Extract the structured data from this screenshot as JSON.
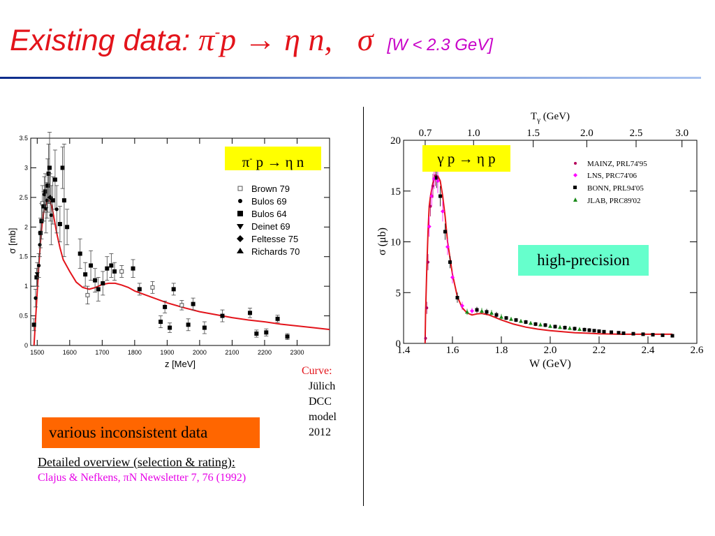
{
  "slide": {
    "title": {
      "prefix": "Existing data: ",
      "pi": "π",
      "pi_charge": "-",
      "rest": "p → η n,",
      "sigma": "σ",
      "range": "[W < 2.3 GeV]"
    },
    "curve_note": {
      "label": "Curve:",
      "line1": "Jülich",
      "line2": "DCC",
      "line3": "model",
      "line4": "2012"
    },
    "badge_left": "various inconsistent data",
    "badge_right": "high-precision",
    "overview_label": "Detailed overview (selection & rating):",
    "citation": "Clajus & Nefkens, πN Newsletter 7, 76 (1992)",
    "colors": {
      "title": "#e3141b",
      "curve": "#e3141b",
      "badge_left": "#ff6600",
      "badge_right": "#66ffcc",
      "reaction_box": "#ffff00",
      "citation": "#e600e6"
    }
  },
  "chart_data": [
    {
      "type": "scatter",
      "reaction": {
        "pi": "π",
        "charge": "-",
        "rest": " p → η n"
      },
      "xlabel": "z [MeV]",
      "ylabel": "σ [mb]",
      "xlim": [
        1480,
        2400
      ],
      "ylim": [
        0,
        3.5
      ],
      "xticks": [
        "1500",
        "1600",
        "1700",
        "1800",
        "1900",
        "2000",
        "2100",
        "2200",
        "2300"
      ],
      "yticks": [
        "0",
        "0.5",
        "1",
        "1.5",
        "2",
        "2.5",
        "3",
        "3.5"
      ],
      "legend_position": "right",
      "legend": [
        {
          "name": "Brown 79",
          "marker": "open-square"
        },
        {
          "name": "Bulos 69",
          "marker": "circle"
        },
        {
          "name": "Bulos 64",
          "marker": "square"
        },
        {
          "name": "Deinet 69",
          "marker": "triangle-down"
        },
        {
          "name": "Feltesse 75",
          "marker": "diamond"
        },
        {
          "name": "Richards 70",
          "marker": "triangle-up"
        }
      ],
      "points": [
        {
          "x": 1490,
          "y": 0.35,
          "e": 0.1,
          "m": "square"
        },
        {
          "x": 1495,
          "y": 0.8,
          "e": 0.15,
          "m": "circle"
        },
        {
          "x": 1498,
          "y": 1.15,
          "e": 0.15,
          "m": "square"
        },
        {
          "x": 1500,
          "y": 1.2,
          "e": 0.2,
          "m": "triangle-down"
        },
        {
          "x": 1505,
          "y": 1.35,
          "e": 0.2,
          "m": "circle"
        },
        {
          "x": 1508,
          "y": 1.7,
          "e": 0.2,
          "m": "circle"
        },
        {
          "x": 1510,
          "y": 1.9,
          "e": 0.25,
          "m": "square"
        },
        {
          "x": 1513,
          "y": 2.1,
          "e": 0.3,
          "m": "square"
        },
        {
          "x": 1516,
          "y": 2.4,
          "e": 0.3,
          "m": "open-square"
        },
        {
          "x": 1520,
          "y": 2.35,
          "e": 0.25,
          "m": "square"
        },
        {
          "x": 1522,
          "y": 2.55,
          "e": 0.3,
          "m": "circle"
        },
        {
          "x": 1525,
          "y": 2.6,
          "e": 0.3,
          "m": "square"
        },
        {
          "x": 1527,
          "y": 2.3,
          "e": 0.4,
          "m": "triangle-down"
        },
        {
          "x": 1530,
          "y": 2.45,
          "e": 0.3,
          "m": "circle"
        },
        {
          "x": 1532,
          "y": 2.7,
          "e": 0.45,
          "m": "square"
        },
        {
          "x": 1535,
          "y": 2.9,
          "e": 0.5,
          "m": "square"
        },
        {
          "x": 1538,
          "y": 3.0,
          "e": 0.6,
          "m": "square"
        },
        {
          "x": 1540,
          "y": 2.5,
          "e": 0.4,
          "m": "diamond"
        },
        {
          "x": 1543,
          "y": 2.2,
          "e": 0.5,
          "m": "circle"
        },
        {
          "x": 1548,
          "y": 2.45,
          "e": 0.4,
          "m": "square"
        },
        {
          "x": 1555,
          "y": 2.8,
          "e": 0.5,
          "m": "square"
        },
        {
          "x": 1560,
          "y": 2.3,
          "e": 0.4,
          "m": "circle"
        },
        {
          "x": 1570,
          "y": 2.05,
          "e": 0.3,
          "m": "square"
        },
        {
          "x": 1578,
          "y": 3.0,
          "e": 0.35,
          "m": "square"
        },
        {
          "x": 1583,
          "y": 2.45,
          "e": 0.95,
          "m": "square"
        },
        {
          "x": 1592,
          "y": 2.0,
          "e": 0.3,
          "m": "square"
        },
        {
          "x": 1632,
          "y": 1.55,
          "e": 0.25,
          "m": "square"
        },
        {
          "x": 1648,
          "y": 1.2,
          "e": 0.2,
          "m": "square"
        },
        {
          "x": 1655,
          "y": 0.85,
          "e": 0.15,
          "m": "open-square"
        },
        {
          "x": 1665,
          "y": 1.35,
          "e": 0.25,
          "m": "square"
        },
        {
          "x": 1678,
          "y": 1.1,
          "e": 0.2,
          "m": "square"
        },
        {
          "x": 1688,
          "y": 0.95,
          "e": 0.2,
          "m": "square"
        },
        {
          "x": 1702,
          "y": 1.05,
          "e": 0.2,
          "m": "square"
        },
        {
          "x": 1715,
          "y": 1.3,
          "e": 0.2,
          "m": "square"
        },
        {
          "x": 1728,
          "y": 1.35,
          "e": 0.2,
          "m": "square"
        },
        {
          "x": 1738,
          "y": 1.25,
          "e": 0.15,
          "m": "square"
        },
        {
          "x": 1760,
          "y": 1.25,
          "e": 0.1,
          "m": "open-square"
        },
        {
          "x": 1795,
          "y": 1.3,
          "e": 0.15,
          "m": "square"
        },
        {
          "x": 1815,
          "y": 0.95,
          "e": 0.1,
          "m": "square"
        },
        {
          "x": 1855,
          "y": 0.98,
          "e": 0.1,
          "m": "open-square"
        },
        {
          "x": 1880,
          "y": 0.4,
          "e": 0.1,
          "m": "square"
        },
        {
          "x": 1893,
          "y": 0.65,
          "e": 0.1,
          "m": "square"
        },
        {
          "x": 1908,
          "y": 0.3,
          "e": 0.08,
          "m": "square"
        },
        {
          "x": 1920,
          "y": 0.95,
          "e": 0.1,
          "m": "square"
        },
        {
          "x": 1945,
          "y": 0.68,
          "e": 0.08,
          "m": "open-square"
        },
        {
          "x": 1965,
          "y": 0.35,
          "e": 0.1,
          "m": "square"
        },
        {
          "x": 1980,
          "y": 0.7,
          "e": 0.1,
          "m": "square"
        },
        {
          "x": 2015,
          "y": 0.3,
          "e": 0.1,
          "m": "square"
        },
        {
          "x": 2070,
          "y": 0.5,
          "e": 0.1,
          "m": "square"
        },
        {
          "x": 2155,
          "y": 0.55,
          "e": 0.08,
          "m": "square"
        },
        {
          "x": 2175,
          "y": 0.2,
          "e": 0.06,
          "m": "square"
        },
        {
          "x": 2205,
          "y": 0.22,
          "e": 0.06,
          "m": "square"
        },
        {
          "x": 2240,
          "y": 0.45,
          "e": 0.06,
          "m": "square"
        },
        {
          "x": 2270,
          "y": 0.15,
          "e": 0.05,
          "m": "square"
        }
      ],
      "curve": {
        "x": [
          1490,
          1495,
          1500,
          1505,
          1510,
          1515,
          1520,
          1525,
          1530,
          1535,
          1540,
          1545,
          1550,
          1560,
          1570,
          1580,
          1600,
          1620,
          1640,
          1660,
          1680,
          1700,
          1720,
          1740,
          1760,
          1780,
          1800,
          1850,
          1900,
          1950,
          2000,
          2050,
          2100,
          2150,
          2200,
          2250,
          2300,
          2350,
          2400
        ],
        "y": [
          0.0,
          0.45,
          0.9,
          1.35,
          1.75,
          2.05,
          2.25,
          2.35,
          2.42,
          2.45,
          2.43,
          2.35,
          2.2,
          1.9,
          1.65,
          1.45,
          1.25,
          1.07,
          0.98,
          0.95,
          0.98,
          1.03,
          1.05,
          1.05,
          1.02,
          0.98,
          0.92,
          0.82,
          0.72,
          0.64,
          0.57,
          0.52,
          0.47,
          0.43,
          0.4,
          0.36,
          0.33,
          0.3,
          0.27
        ]
      }
    },
    {
      "type": "scatter",
      "reaction": "γ p → η p",
      "xlabel": "W (GeV)",
      "ylabel": "σ (μb)",
      "x2label_base": "T",
      "x2label_sub": "γ",
      "x2label_rest": " (GeV)",
      "xlim": [
        1.4,
        2.6
      ],
      "ylim": [
        0,
        20
      ],
      "xticks": [
        "1.4",
        "1.6",
        "1.8",
        "2.0",
        "2.2",
        "2.4",
        "2.6"
      ],
      "yticks": [
        "0",
        "5",
        "10",
        "15",
        "20"
      ],
      "x2ticks": [
        {
          "label": "0.7",
          "w": 1.4884
        },
        {
          "label": "1.0",
          "w": 1.6864
        },
        {
          "label": "1.5",
          "w": 1.9305
        },
        {
          "label": "2.0",
          "w": 2.1496
        },
        {
          "label": "2.5",
          "w": 2.3514
        },
        {
          "label": "3.0",
          "w": 2.5392
        }
      ],
      "legend_position": "top-right",
      "legend": [
        {
          "name": "MAINZ, PRL74'95",
          "color": "#b5005a",
          "marker": "dot"
        },
        {
          "name": "LNS, PRC74'06",
          "color": "#ff00ff",
          "marker": "diamond"
        },
        {
          "name": "BONN, PRL94'05",
          "color": "#000000",
          "marker": "square"
        },
        {
          "name": "JLAB, PRC89'02",
          "color": "#1a8a1a",
          "marker": "triangle"
        }
      ],
      "points": [
        {
          "x": 1.49,
          "y": 0.5,
          "e": 0.3,
          "s": 0
        },
        {
          "x": 1.495,
          "y": 3.5,
          "e": 0.6,
          "s": 0
        },
        {
          "x": 1.5,
          "y": 8.0,
          "e": 0.8,
          "s": 0
        },
        {
          "x": 1.505,
          "y": 11.5,
          "e": 1.0,
          "s": 1
        },
        {
          "x": 1.51,
          "y": 13.5,
          "e": 1.0,
          "s": 0
        },
        {
          "x": 1.515,
          "y": 14.5,
          "e": 1.0,
          "s": 1
        },
        {
          "x": 1.52,
          "y": 15.5,
          "e": 1.2,
          "s": 0
        },
        {
          "x": 1.525,
          "y": 16.2,
          "e": 1.0,
          "s": 1
        },
        {
          "x": 1.53,
          "y": 16.5,
          "e": 1.0,
          "s": 0
        },
        {
          "x": 1.535,
          "y": 16.3,
          "e": 1.0,
          "s": 2
        },
        {
          "x": 1.54,
          "y": 16.0,
          "e": 1.2,
          "s": 1
        },
        {
          "x": 1.55,
          "y": 14.5,
          "e": 1.0,
          "s": 2
        },
        {
          "x": 1.56,
          "y": 13.0,
          "e": 1.0,
          "s": 1
        },
        {
          "x": 1.57,
          "y": 11.0,
          "e": 0.8,
          "s": 2
        },
        {
          "x": 1.58,
          "y": 9.5,
          "e": 0.8,
          "s": 1
        },
        {
          "x": 1.59,
          "y": 8.0,
          "e": 0.6,
          "s": 2
        },
        {
          "x": 1.6,
          "y": 6.5,
          "e": 0.6,
          "s": 1
        },
        {
          "x": 1.62,
          "y": 4.5,
          "e": 0.5,
          "s": 2
        },
        {
          "x": 1.64,
          "y": 3.7,
          "e": 0.4,
          "s": 1
        },
        {
          "x": 1.66,
          "y": 3.1,
          "e": 0.3,
          "s": 3
        },
        {
          "x": 1.68,
          "y": 3.2,
          "e": 0.3,
          "s": 1
        },
        {
          "x": 1.7,
          "y": 3.3,
          "e": 0.3,
          "s": 2
        },
        {
          "x": 1.72,
          "y": 3.2,
          "e": 0.3,
          "s": 3
        },
        {
          "x": 1.74,
          "y": 3.1,
          "e": 0.3,
          "s": 2
        },
        {
          "x": 1.76,
          "y": 3.0,
          "e": 0.3,
          "s": 3
        },
        {
          "x": 1.78,
          "y": 2.8,
          "e": 0.3,
          "s": 2
        },
        {
          "x": 1.8,
          "y": 2.6,
          "e": 0.3,
          "s": 3
        },
        {
          "x": 1.82,
          "y": 2.5,
          "e": 0.2,
          "s": 2
        },
        {
          "x": 1.84,
          "y": 2.4,
          "e": 0.2,
          "s": 3
        },
        {
          "x": 1.86,
          "y": 2.3,
          "e": 0.2,
          "s": 2
        },
        {
          "x": 1.88,
          "y": 2.2,
          "e": 0.2,
          "s": 3
        },
        {
          "x": 1.9,
          "y": 2.1,
          "e": 0.2,
          "s": 2
        },
        {
          "x": 1.92,
          "y": 2.0,
          "e": 0.2,
          "s": 3
        },
        {
          "x": 1.94,
          "y": 1.9,
          "e": 0.2,
          "s": 2
        },
        {
          "x": 1.96,
          "y": 1.85,
          "e": 0.2,
          "s": 3
        },
        {
          "x": 1.98,
          "y": 1.8,
          "e": 0.2,
          "s": 2
        },
        {
          "x": 2.0,
          "y": 1.7,
          "e": 0.2,
          "s": 3
        },
        {
          "x": 2.02,
          "y": 1.65,
          "e": 0.2,
          "s": 2
        },
        {
          "x": 2.04,
          "y": 1.6,
          "e": 0.2,
          "s": 3
        },
        {
          "x": 2.06,
          "y": 1.55,
          "e": 0.2,
          "s": 2
        },
        {
          "x": 2.08,
          "y": 1.5,
          "e": 0.2,
          "s": 3
        },
        {
          "x": 2.1,
          "y": 1.45,
          "e": 0.2,
          "s": 2
        },
        {
          "x": 2.12,
          "y": 1.4,
          "e": 0.2,
          "s": 3
        },
        {
          "x": 2.14,
          "y": 1.35,
          "e": 0.2,
          "s": 2
        },
        {
          "x": 2.16,
          "y": 1.3,
          "e": 0.2,
          "s": 2
        },
        {
          "x": 2.18,
          "y": 1.25,
          "e": 0.15,
          "s": 2
        },
        {
          "x": 2.2,
          "y": 1.2,
          "e": 0.15,
          "s": 2
        },
        {
          "x": 2.22,
          "y": 1.15,
          "e": 0.15,
          "s": 2
        },
        {
          "x": 2.25,
          "y": 1.1,
          "e": 0.15,
          "s": 2
        },
        {
          "x": 2.28,
          "y": 1.05,
          "e": 0.15,
          "s": 2
        },
        {
          "x": 2.3,
          "y": 1.0,
          "e": 0.15,
          "s": 2
        },
        {
          "x": 2.34,
          "y": 0.95,
          "e": 0.15,
          "s": 2
        },
        {
          "x": 2.38,
          "y": 0.9,
          "e": 0.15,
          "s": 2
        },
        {
          "x": 2.42,
          "y": 0.85,
          "e": 0.15,
          "s": 2
        },
        {
          "x": 2.46,
          "y": 0.8,
          "e": 0.15,
          "s": 2
        },
        {
          "x": 2.5,
          "y": 0.75,
          "e": 0.15,
          "s": 2
        }
      ],
      "curve": {
        "x": [
          1.488,
          1.49,
          1.495,
          1.5,
          1.505,
          1.51,
          1.52,
          1.53,
          1.54,
          1.55,
          1.56,
          1.57,
          1.58,
          1.6,
          1.62,
          1.64,
          1.66,
          1.68,
          1.7,
          1.72,
          1.75,
          1.78,
          1.8,
          1.85,
          1.9,
          1.95,
          2.0,
          2.05,
          2.1,
          2.15,
          2.2,
          2.3,
          2.4,
          2.5
        ],
        "y": [
          0.0,
          3.0,
          7.5,
          11.0,
          13.5,
          14.5,
          15.8,
          16.4,
          16.5,
          16.0,
          14.5,
          12.5,
          10.0,
          6.8,
          4.6,
          3.5,
          3.0,
          2.8,
          2.9,
          2.95,
          2.8,
          2.5,
          2.3,
          1.9,
          1.6,
          1.4,
          1.25,
          1.15,
          1.05,
          1.0,
          0.95,
          0.9,
          0.9,
          0.9
        ]
      }
    }
  ]
}
